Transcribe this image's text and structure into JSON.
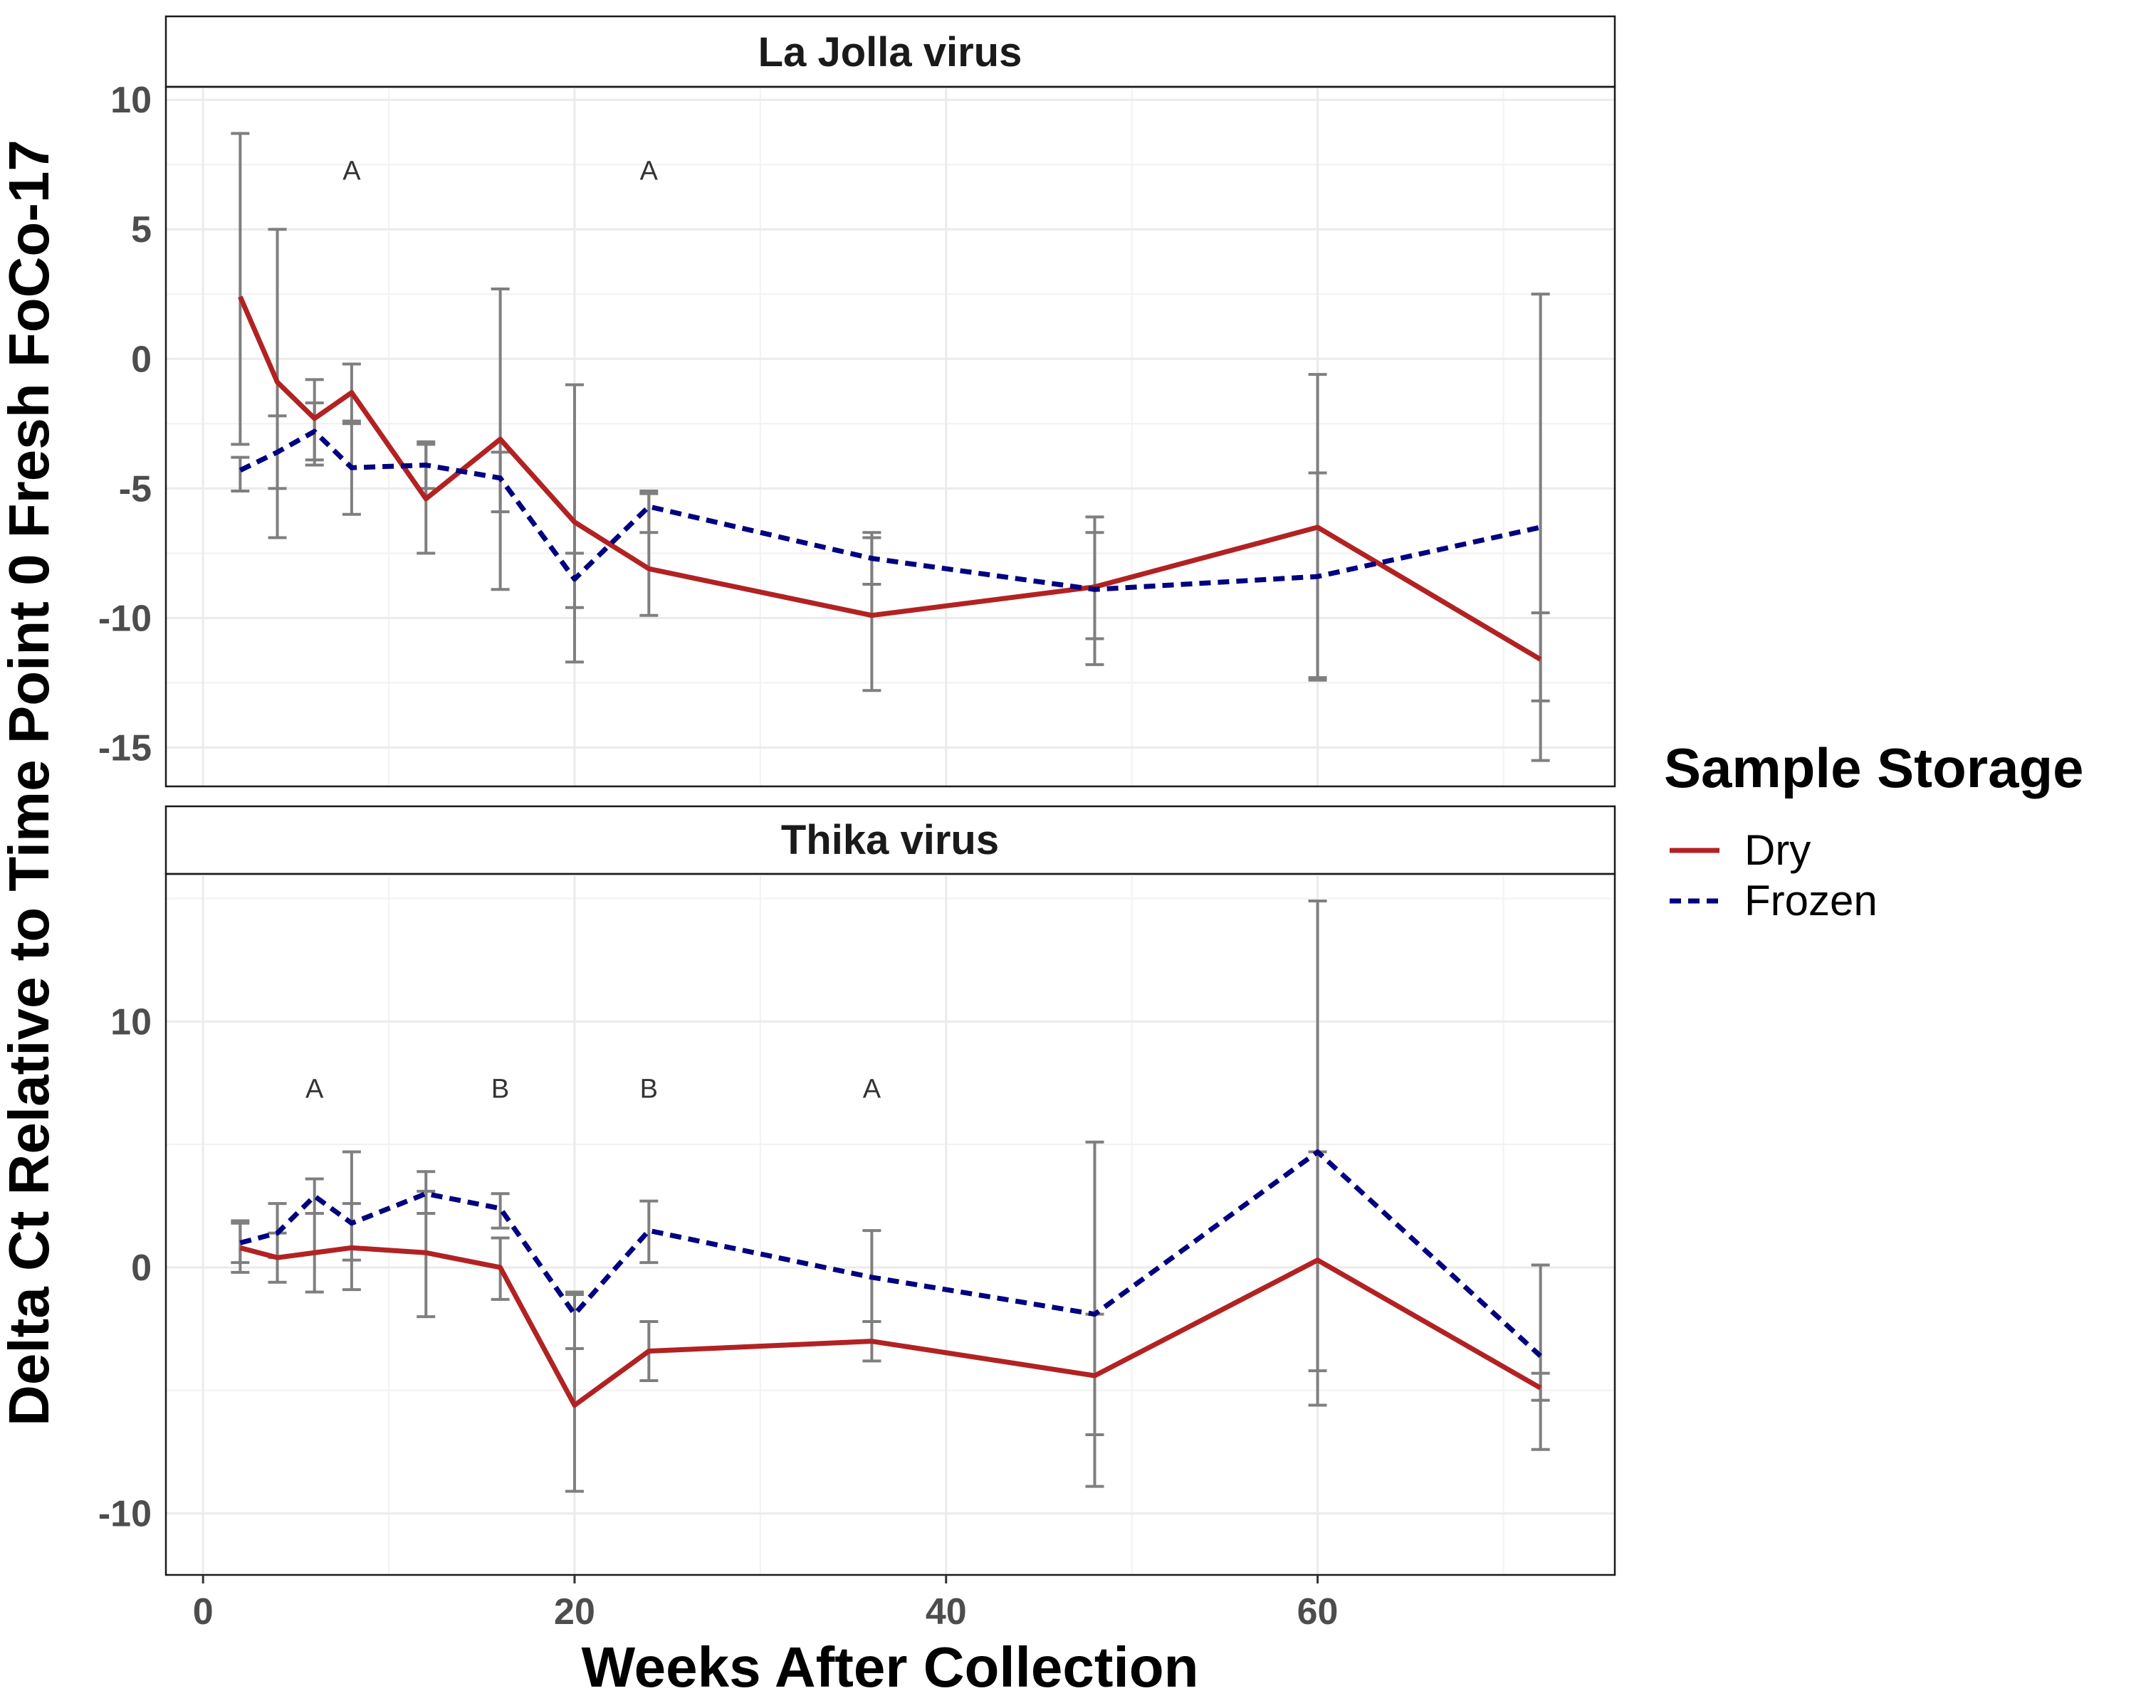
{
  "chart_data": {
    "type": "line",
    "xlabel": "Weeks After Collection",
    "ylabel": "Delta Ct Relative to Time Point 0 Fresh FoCo-17",
    "xlim": [
      -2,
      76
    ],
    "xticks": [
      0,
      20,
      40,
      60
    ],
    "legend": {
      "title": "Sample Storage",
      "placement": "right",
      "entries": [
        {
          "name": "Dry",
          "color": "#b22222",
          "dash": "solid"
        },
        {
          "name": "Frozen",
          "color": "#000080",
          "dash": "dashed"
        }
      ]
    },
    "errorbar_color": "#7f7f7f",
    "grid": true,
    "panels": [
      {
        "title": "La Jolla virus",
        "ylim": [
          -16.5,
          10.5
        ],
        "yticks": [
          -15,
          -10,
          -5,
          0,
          5,
          10
        ],
        "annotations": [
          {
            "x": 8,
            "y": 7.3,
            "text": "A"
          },
          {
            "x": 24,
            "y": 7.3,
            "text": "A"
          }
        ],
        "series": [
          {
            "name": "Dry",
            "x": [
              2,
              4,
              6,
              8,
              12,
              16,
              20,
              24,
              36,
              48,
              60,
              72
            ],
            "y": [
              2.4,
              -0.9,
              -2.3,
              -1.3,
              -5.4,
              -3.1,
              -6.3,
              -8.1,
              -9.9,
              -8.8,
              -6.5,
              -11.6
            ],
            "err_low": [
              -3.3,
              -5.0,
              -3.9,
              -2.4,
              -7.5,
              -8.9,
              -11.7,
              -9.9,
              -12.8,
              -11.8,
              -12.3,
              -15.5
            ],
            "err_high": [
              8.7,
              5.0,
              -0.8,
              -0.2,
              -3.3,
              2.7,
              -1.0,
              -5.2,
              -6.9,
              -6.1,
              -0.6,
              2.5
            ]
          },
          {
            "name": "Frozen",
            "x": [
              2,
              4,
              6,
              8,
              12,
              16,
              20,
              24,
              36,
              48,
              60,
              72
            ],
            "y": [
              -4.3,
              -3.6,
              -2.8,
              -4.2,
              -4.1,
              -4.6,
              -8.5,
              -5.7,
              -7.7,
              -8.9,
              -8.4,
              -6.5
            ],
            "err_low": [
              -5.1,
              -6.9,
              -4.1,
              -6.0,
              -5.0,
              -5.9,
              -9.6,
              -6.7,
              -8.7,
              -10.8,
              -12.4,
              -13.2
            ],
            "err_high": [
              -3.8,
              -2.2,
              -1.7,
              -2.5,
              -3.2,
              -3.6,
              -7.5,
              -5.1,
              -6.7,
              -6.7,
              -4.4,
              -9.8
            ]
          }
        ]
      },
      {
        "title": "Thika virus",
        "ylim": [
          -12.5,
          16
        ],
        "yticks": [
          -10,
          0,
          10
        ],
        "annotations": [
          {
            "x": 6,
            "y": 7.3,
            "text": "A"
          },
          {
            "x": 16,
            "y": 7.3,
            "text": "B"
          },
          {
            "x": 24,
            "y": 7.3,
            "text": "B"
          },
          {
            "x": 36,
            "y": 7.3,
            "text": "A"
          }
        ],
        "series": [
          {
            "name": "Dry",
            "x": [
              2,
              4,
              6,
              8,
              12,
              16,
              20,
              24,
              36,
              48,
              60,
              72
            ],
            "y": [
              0.8,
              0.4,
              0.6,
              0.8,
              0.6,
              0.0,
              -5.6,
              -3.4,
              -3.0,
              -4.4,
              0.3,
              -4.9
            ],
            "err_low": [
              -0.2,
              -0.6,
              -1.0,
              -0.9,
              -2.0,
              -1.3,
              -9.1,
              -4.6,
              -3.8,
              -8.9,
              -5.6,
              -7.4
            ],
            "err_high": [
              1.8,
              1.4,
              2.2,
              2.6,
              3.1,
              1.2,
              -1.1,
              -2.2,
              -2.2,
              -1.9,
              4.7,
              -4.3
            ]
          },
          {
            "name": "Frozen",
            "x": [
              2,
              4,
              6,
              8,
              12,
              16,
              20,
              24,
              36,
              48,
              60,
              72
            ],
            "y": [
              1.0,
              1.4,
              2.9,
              1.8,
              3.0,
              2.4,
              -1.9,
              1.5,
              -0.4,
              -1.9,
              4.7,
              -3.6
            ],
            "err_low": [
              0.2,
              0.4,
              2.2,
              0.3,
              2.2,
              1.6,
              -3.3,
              0.2,
              -2.2,
              -6.8,
              -4.2,
              -5.4
            ],
            "err_high": [
              1.9,
              2.6,
              3.6,
              4.7,
              3.9,
              3.0,
              -1.0,
              2.7,
              1.5,
              5.1,
              14.9,
              0.1
            ]
          }
        ]
      }
    ]
  }
}
